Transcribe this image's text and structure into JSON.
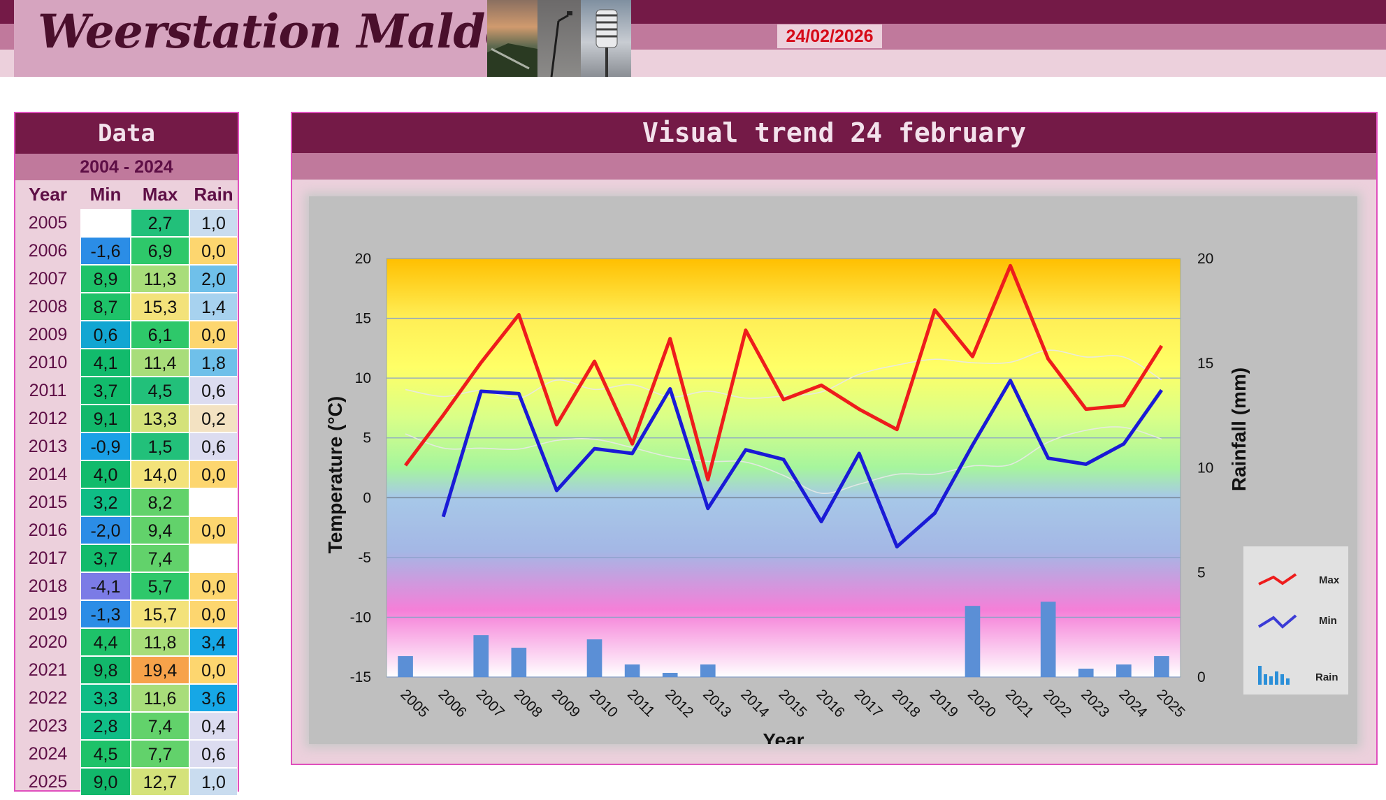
{
  "header": {
    "title": "Weerstation Malderen",
    "date": "24/02/2026"
  },
  "table": {
    "title": "Data",
    "range": "2004 - 2024",
    "columns": [
      "Year",
      "Min",
      "Max",
      "Rain"
    ],
    "rows": [
      {
        "year": "2005",
        "min": "",
        "max": "2,7",
        "rain": "1,0"
      },
      {
        "year": "2006",
        "min": "-1,6",
        "max": "6,9",
        "rain": "0,0"
      },
      {
        "year": "2007",
        "min": "8,9",
        "max": "11,3",
        "rain": "2,0"
      },
      {
        "year": "2008",
        "min": "8,7",
        "max": "15,3",
        "rain": "1,4"
      },
      {
        "year": "2009",
        "min": "0,6",
        "max": "6,1",
        "rain": "0,0"
      },
      {
        "year": "2010",
        "min": "4,1",
        "max": "11,4",
        "rain": "1,8"
      },
      {
        "year": "2011",
        "min": "3,7",
        "max": "4,5",
        "rain": "0,6"
      },
      {
        "year": "2012",
        "min": "9,1",
        "max": "13,3",
        "rain": "0,2"
      },
      {
        "year": "2013",
        "min": "-0,9",
        "max": "1,5",
        "rain": "0,6"
      },
      {
        "year": "2014",
        "min": "4,0",
        "max": "14,0",
        "rain": "0,0"
      },
      {
        "year": "2015",
        "min": "3,2",
        "max": "8,2",
        "rain": ""
      },
      {
        "year": "2016",
        "min": "-2,0",
        "max": "9,4",
        "rain": "0,0"
      },
      {
        "year": "2017",
        "min": "3,7",
        "max": "7,4",
        "rain": ""
      },
      {
        "year": "2018",
        "min": "-4,1",
        "max": "5,7",
        "rain": "0,0"
      },
      {
        "year": "2019",
        "min": "-1,3",
        "max": "15,7",
        "rain": "0,0"
      },
      {
        "year": "2020",
        "min": "4,4",
        "max": "11,8",
        "rain": "3,4"
      },
      {
        "year": "2021",
        "min": "9,8",
        "max": "19,4",
        "rain": "0,0"
      },
      {
        "year": "2022",
        "min": "3,3",
        "max": "11,6",
        "rain": "3,6"
      },
      {
        "year": "2023",
        "min": "2,8",
        "max": "7,4",
        "rain": "0,4"
      },
      {
        "year": "2024",
        "min": "4,5",
        "max": "7,7",
        "rain": "0,6"
      },
      {
        "year": "2025",
        "min": "9,0",
        "max": "12,7",
        "rain": "1,0"
      }
    ]
  },
  "colors": {
    "max_line": "#ee1c1c",
    "min_line": "#1a1ad6",
    "rain_bar": "#5b8fd6",
    "header_dark": "#741a47",
    "header_mid": "#c0799c",
    "header_light": "#ecd0dc",
    "date_text": "#d60a18"
  },
  "chart_title": "Visual trend 24 february",
  "chart_data": {
    "type": "line",
    "categories": [
      "2005",
      "2006",
      "2007",
      "2008",
      "2009",
      "2010",
      "2011",
      "2012",
      "2013",
      "2014",
      "2015",
      "2016",
      "2017",
      "2018",
      "2019",
      "2020",
      "2021",
      "2022",
      "2023",
      "2024",
      "2025"
    ],
    "series": [
      {
        "name": "Max",
        "axis": "left",
        "values": [
          2.7,
          6.9,
          11.3,
          15.3,
          6.1,
          11.4,
          4.5,
          13.3,
          1.5,
          14.0,
          8.2,
          9.4,
          7.4,
          5.7,
          15.7,
          11.8,
          19.4,
          11.6,
          7.4,
          7.7,
          12.7
        ]
      },
      {
        "name": "Min",
        "axis": "left",
        "values": [
          null,
          -1.6,
          8.9,
          8.7,
          0.6,
          4.1,
          3.7,
          9.1,
          -0.9,
          4.0,
          3.2,
          -2.0,
          3.7,
          -4.1,
          -1.3,
          4.4,
          9.8,
          3.3,
          2.8,
          4.5,
          9.0
        ]
      },
      {
        "name": "Rain",
        "type": "bar",
        "axis": "right",
        "values": [
          1.0,
          0.0,
          2.0,
          1.4,
          0.0,
          1.8,
          0.6,
          0.2,
          0.6,
          0.0,
          null,
          0.0,
          null,
          0.0,
          0.0,
          3.4,
          0.0,
          3.6,
          0.4,
          0.6,
          1.0
        ]
      }
    ],
    "xlabel": "Year",
    "ylabel": "Temperature (°C)",
    "y2label": "Rainfall (mm)",
    "ylim": [
      -15,
      20
    ],
    "y2lim": [
      0,
      20
    ],
    "yticks": [
      -15,
      -10,
      -5,
      0,
      5,
      10,
      15,
      20
    ],
    "y2ticks": [
      0,
      5,
      10,
      15,
      20
    ],
    "legend_placement": "bottom-right",
    "grid": true
  }
}
